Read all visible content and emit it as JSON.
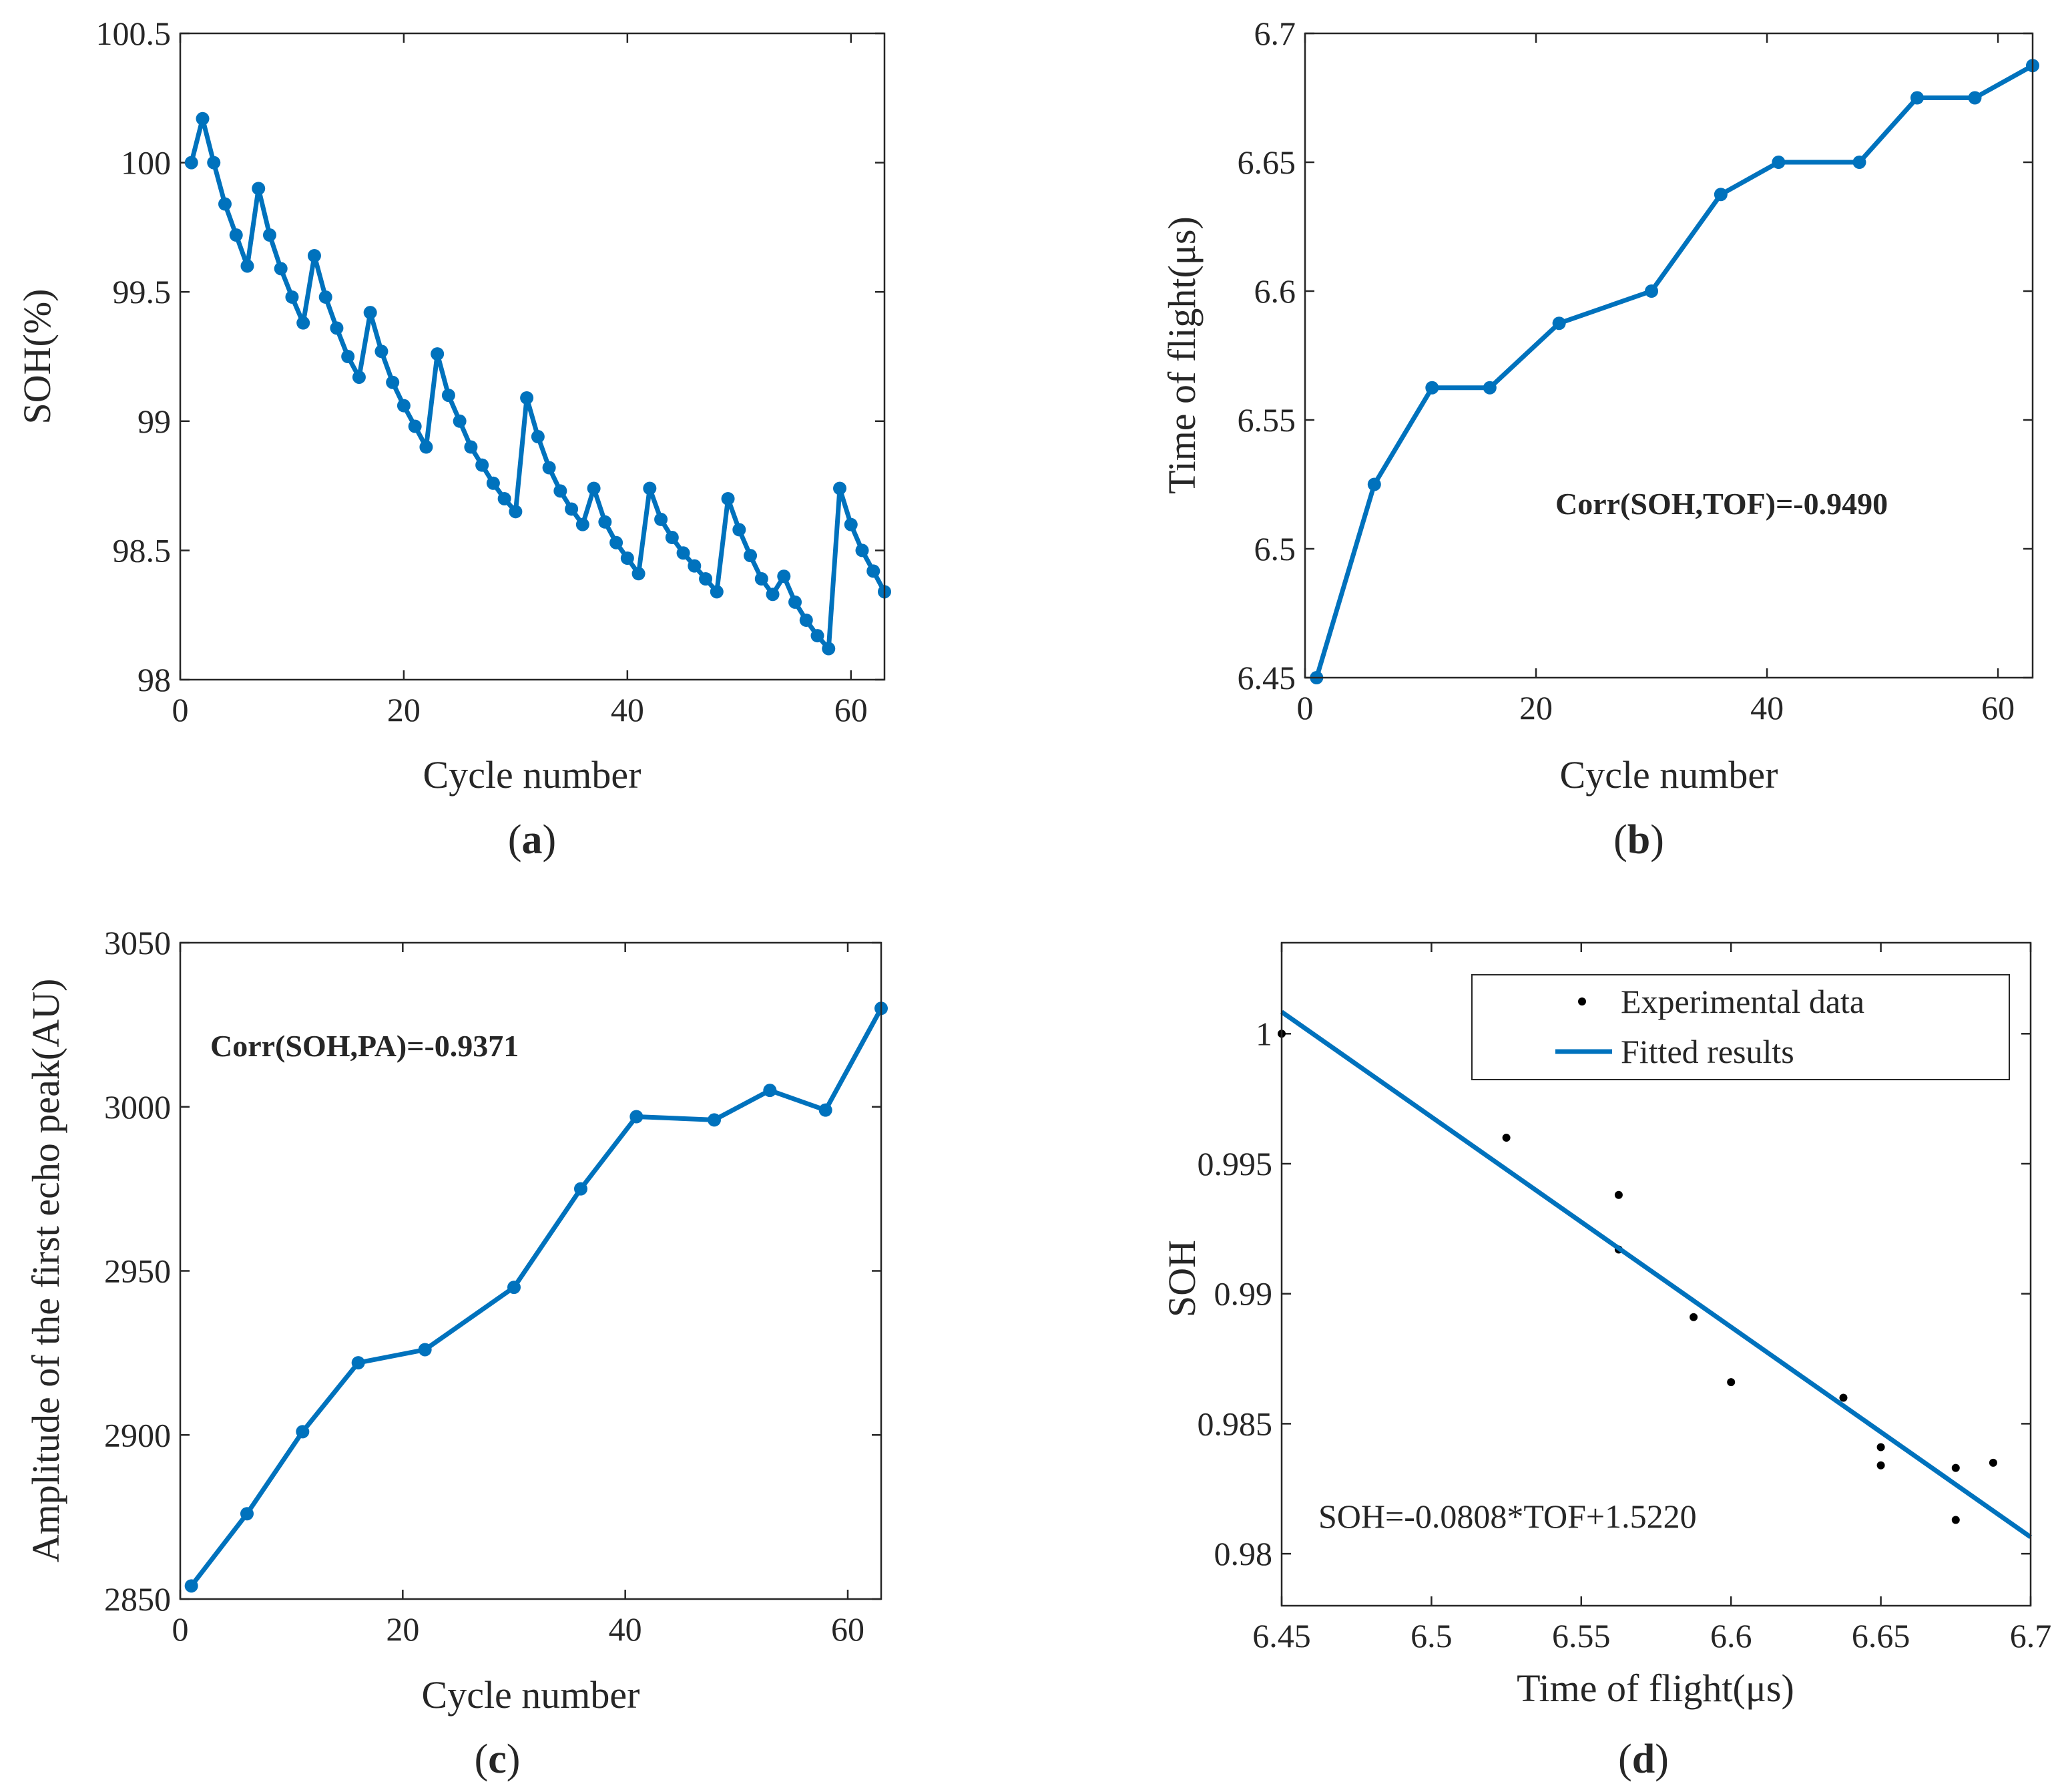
{
  "colors": {
    "series": "#0072BD",
    "axis": "#262626",
    "marker_d": "#000000"
  },
  "chart_data": [
    {
      "id": "a",
      "type": "line",
      "panel_label": {
        "open": "(",
        "letter": "a",
        "close": ")"
      },
      "xlabel": "Cycle number",
      "ylabel": "SOH(%)",
      "xlim": [
        0,
        63
      ],
      "ylim": [
        98,
        100.5
      ],
      "xticks": [
        0,
        20,
        40,
        60
      ],
      "xtick_labels": [
        "0",
        "20",
        "40",
        "60"
      ],
      "yticks": [
        98,
        98.5,
        99,
        99.5,
        100,
        100.5
      ],
      "ytick_labels": [
        "98",
        "98.5",
        "99",
        "99.5",
        "100",
        "100.5"
      ],
      "series": [
        {
          "name": "SOH",
          "marker": "circle",
          "x": [
            1,
            2,
            3,
            4,
            5,
            6,
            7,
            8,
            9,
            10,
            11,
            12,
            13,
            14,
            15,
            16,
            17,
            18,
            19,
            20,
            21,
            22,
            23,
            24,
            25,
            26,
            27,
            28,
            29,
            30,
            31,
            32,
            33,
            34,
            35,
            36,
            37,
            38,
            39,
            40,
            41,
            42,
            43,
            44,
            45,
            46,
            47,
            48,
            49,
            50,
            51,
            52,
            53,
            54,
            55,
            56,
            57,
            58,
            59,
            60,
            61,
            62,
            63
          ],
          "y": [
            100.0,
            100.17,
            100.0,
            99.84,
            99.72,
            99.6,
            99.9,
            99.72,
            99.59,
            99.48,
            99.38,
            99.64,
            99.48,
            99.36,
            99.25,
            99.17,
            99.42,
            99.27,
            99.15,
            99.06,
            98.98,
            98.9,
            99.26,
            99.1,
            99.0,
            98.9,
            98.83,
            98.76,
            98.7,
            98.65,
            99.09,
            98.94,
            98.82,
            98.73,
            98.66,
            98.6,
            98.74,
            98.61,
            98.53,
            98.47,
            98.41,
            98.74,
            98.62,
            98.55,
            98.49,
            98.44,
            98.39,
            98.34,
            98.7,
            98.58,
            98.48,
            98.39,
            98.33,
            98.4,
            98.3,
            98.23,
            98.17,
            98.12,
            98.74,
            98.6,
            98.5,
            98.42,
            98.34
          ]
        }
      ]
    },
    {
      "id": "b",
      "type": "line",
      "panel_label": {
        "open": "(",
        "letter": "b",
        "close": ")"
      },
      "xlabel": "Cycle number",
      "ylabel": "Time of flight(μs)",
      "xlim": [
        0,
        63
      ],
      "ylim": [
        6.45,
        6.7
      ],
      "xticks": [
        0,
        20,
        40,
        60
      ],
      "xtick_labels": [
        "0",
        "20",
        "40",
        "60"
      ],
      "yticks": [
        6.45,
        6.5,
        6.55,
        6.6,
        6.65,
        6.7
      ],
      "ytick_labels": [
        "6.45",
        "6.5",
        "6.55",
        "6.6",
        "6.65",
        "6.7"
      ],
      "annotation": "Corr(SOH,TOF)=-0.9490",
      "series": [
        {
          "name": "Time of flight",
          "marker": "circle",
          "x": [
            1,
            6,
            11,
            16,
            22,
            30,
            36,
            41,
            48,
            53,
            58,
            63
          ],
          "y": [
            6.45,
            6.525,
            6.5625,
            6.5625,
            6.5875,
            6.6,
            6.6375,
            6.65,
            6.65,
            6.675,
            6.675,
            6.6875
          ]
        }
      ]
    },
    {
      "id": "c",
      "type": "line",
      "panel_label": {
        "open": "(",
        "letter": "c",
        "close": ")"
      },
      "xlabel": "Cycle number",
      "ylabel": "Amplitude of the first echo peak(AU)",
      "xlim": [
        0,
        63
      ],
      "ylim": [
        2850,
        3050
      ],
      "xticks": [
        0,
        20,
        40,
        60
      ],
      "xtick_labels": [
        "0",
        "20",
        "40",
        "60"
      ],
      "yticks": [
        2850,
        2900,
        2950,
        3000,
        3050
      ],
      "ytick_labels": [
        "2850",
        "2900",
        "2950",
        "3000",
        "3050"
      ],
      "annotation": "Corr(SOH,PA)=-0.9371",
      "series": [
        {
          "name": "Amplitude",
          "marker": "circle",
          "x": [
            1,
            6,
            11,
            16,
            22,
            30,
            36,
            41,
            48,
            53,
            58,
            63
          ],
          "y": [
            2854,
            2876,
            2901,
            2922,
            2926,
            2945,
            2975,
            2997,
            2996,
            3005,
            2999,
            3030
          ]
        }
      ]
    },
    {
      "id": "d",
      "type": "scatter",
      "panel_label": {
        "open": "(",
        "letter": "d",
        "close": ")"
      },
      "xlabel": "Time of flight(μs)",
      "ylabel": "SOH",
      "xlim": [
        6.45,
        6.7
      ],
      "ylim": [
        0.978,
        1.0035
      ],
      "xticks": [
        6.45,
        6.5,
        6.55,
        6.6,
        6.65,
        6.7
      ],
      "xtick_labels": [
        "6.45",
        "6.5",
        "6.55",
        "6.6",
        "6.65",
        "6.7"
      ],
      "yticks": [
        0.98,
        0.985,
        0.99,
        0.995,
        1.0
      ],
      "ytick_labels": [
        "0.98",
        "0.985",
        "0.99",
        "0.995",
        "1"
      ],
      "annotation": "SOH=-0.0808*TOF+1.5220",
      "legend": {
        "position": "top-right",
        "entries": [
          "Experimental data",
          "Fitted results"
        ]
      },
      "series": [
        {
          "name": "Experimental data",
          "kind": "points",
          "x": [
            6.45,
            6.525,
            6.5625,
            6.5625,
            6.5875,
            6.6,
            6.6375,
            6.65,
            6.65,
            6.675,
            6.675,
            6.6875
          ],
          "y": [
            1.0,
            0.996,
            0.9938,
            0.9917,
            0.9891,
            0.9866,
            0.986,
            0.9841,
            0.9834,
            0.9833,
            0.9813,
            0.9835
          ]
        },
        {
          "name": "Fitted results",
          "kind": "line",
          "slope": -0.0808,
          "intercept": 1.522
        }
      ]
    }
  ]
}
